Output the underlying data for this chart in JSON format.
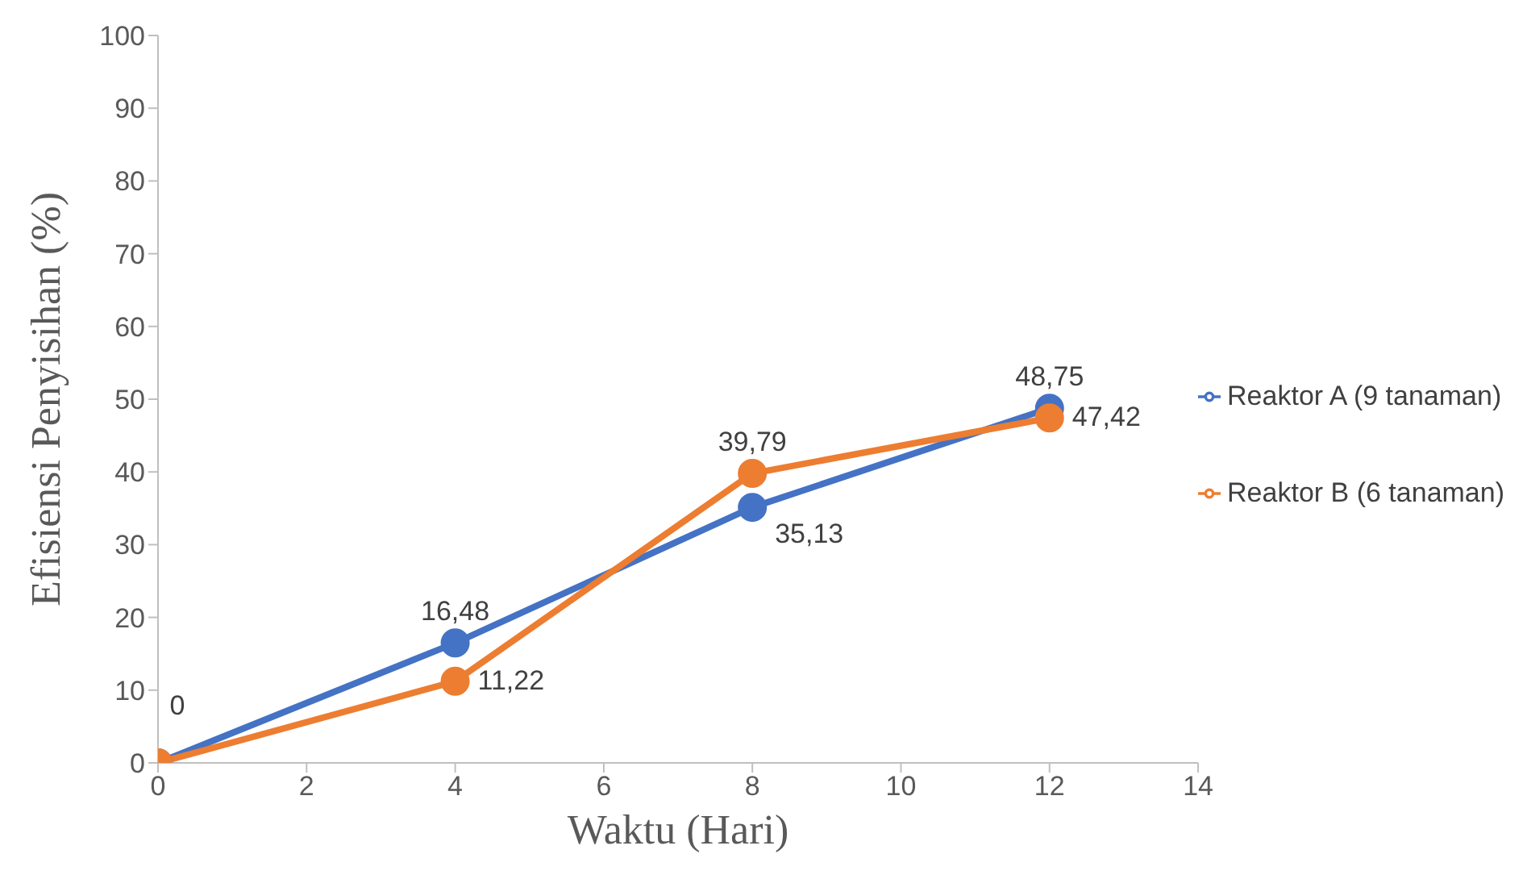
{
  "chart_data": {
    "type": "line",
    "xlabel": "Waktu (Hari)",
    "ylabel": "Efisiensi Penyisihan (%)",
    "x": [
      0,
      4,
      8,
      12
    ],
    "series": [
      {
        "name": "Reaktor A (9 tanaman)",
        "color": "#4472c4",
        "values": [
          0,
          16.48,
          35.13,
          48.75
        ],
        "value_labels": [
          "0",
          "16,48",
          "35,13",
          "48,75"
        ]
      },
      {
        "name": "Reaktor B (6 tanaman)",
        "color": "#ed7d31",
        "values": [
          0,
          11.22,
          39.79,
          47.42
        ],
        "value_labels": [
          null,
          "11,22",
          "39,79",
          "47,42"
        ]
      }
    ],
    "xlim": [
      0,
      14
    ],
    "xticks": [
      0,
      2,
      4,
      6,
      8,
      10,
      12,
      14
    ],
    "ylim": [
      0,
      100
    ],
    "yticks": [
      0,
      10,
      20,
      30,
      40,
      50,
      60,
      70,
      80,
      90,
      100
    ],
    "legend": "right",
    "marker": "circle",
    "line_style": "solid"
  }
}
